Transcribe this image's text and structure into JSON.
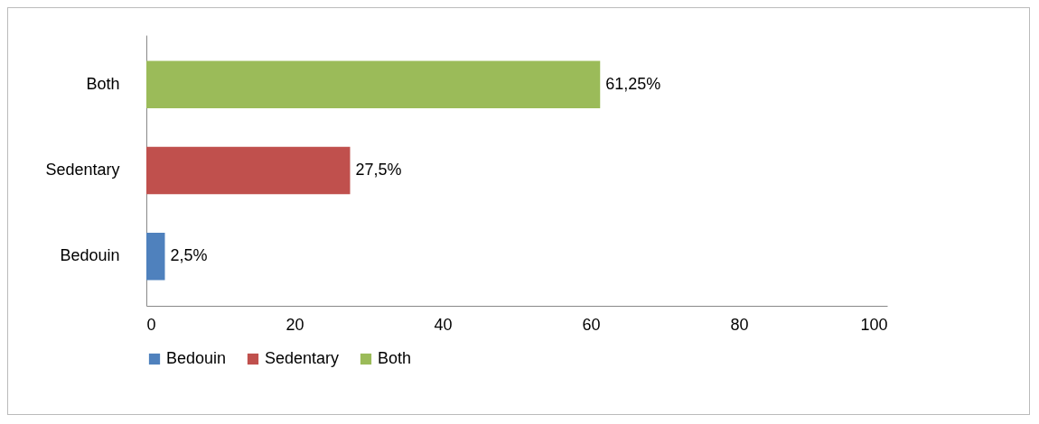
{
  "chart_data": {
    "type": "bar",
    "orientation": "horizontal",
    "categories": [
      "Both",
      "Sedentary",
      "Bedouin"
    ],
    "series": [
      {
        "name": "Bedouin",
        "color": "#4f81bd",
        "values": [
          null,
          null,
          2.5
        ],
        "value_labels": [
          null,
          null,
          "2,5%"
        ]
      },
      {
        "name": "Sedentary",
        "color": "#c0504d",
        "values": [
          null,
          27.5,
          null
        ],
        "value_labels": [
          null,
          "27,5%",
          null
        ]
      },
      {
        "name": "Both",
        "color": "#9bbb59",
        "values": [
          61.25,
          null,
          null
        ],
        "value_labels": [
          "61,25%",
          null,
          null
        ]
      }
    ],
    "xlim": [
      0,
      100
    ],
    "xticks": [
      0,
      20,
      40,
      60,
      80,
      100
    ],
    "grid": false,
    "legend": "bottom"
  }
}
